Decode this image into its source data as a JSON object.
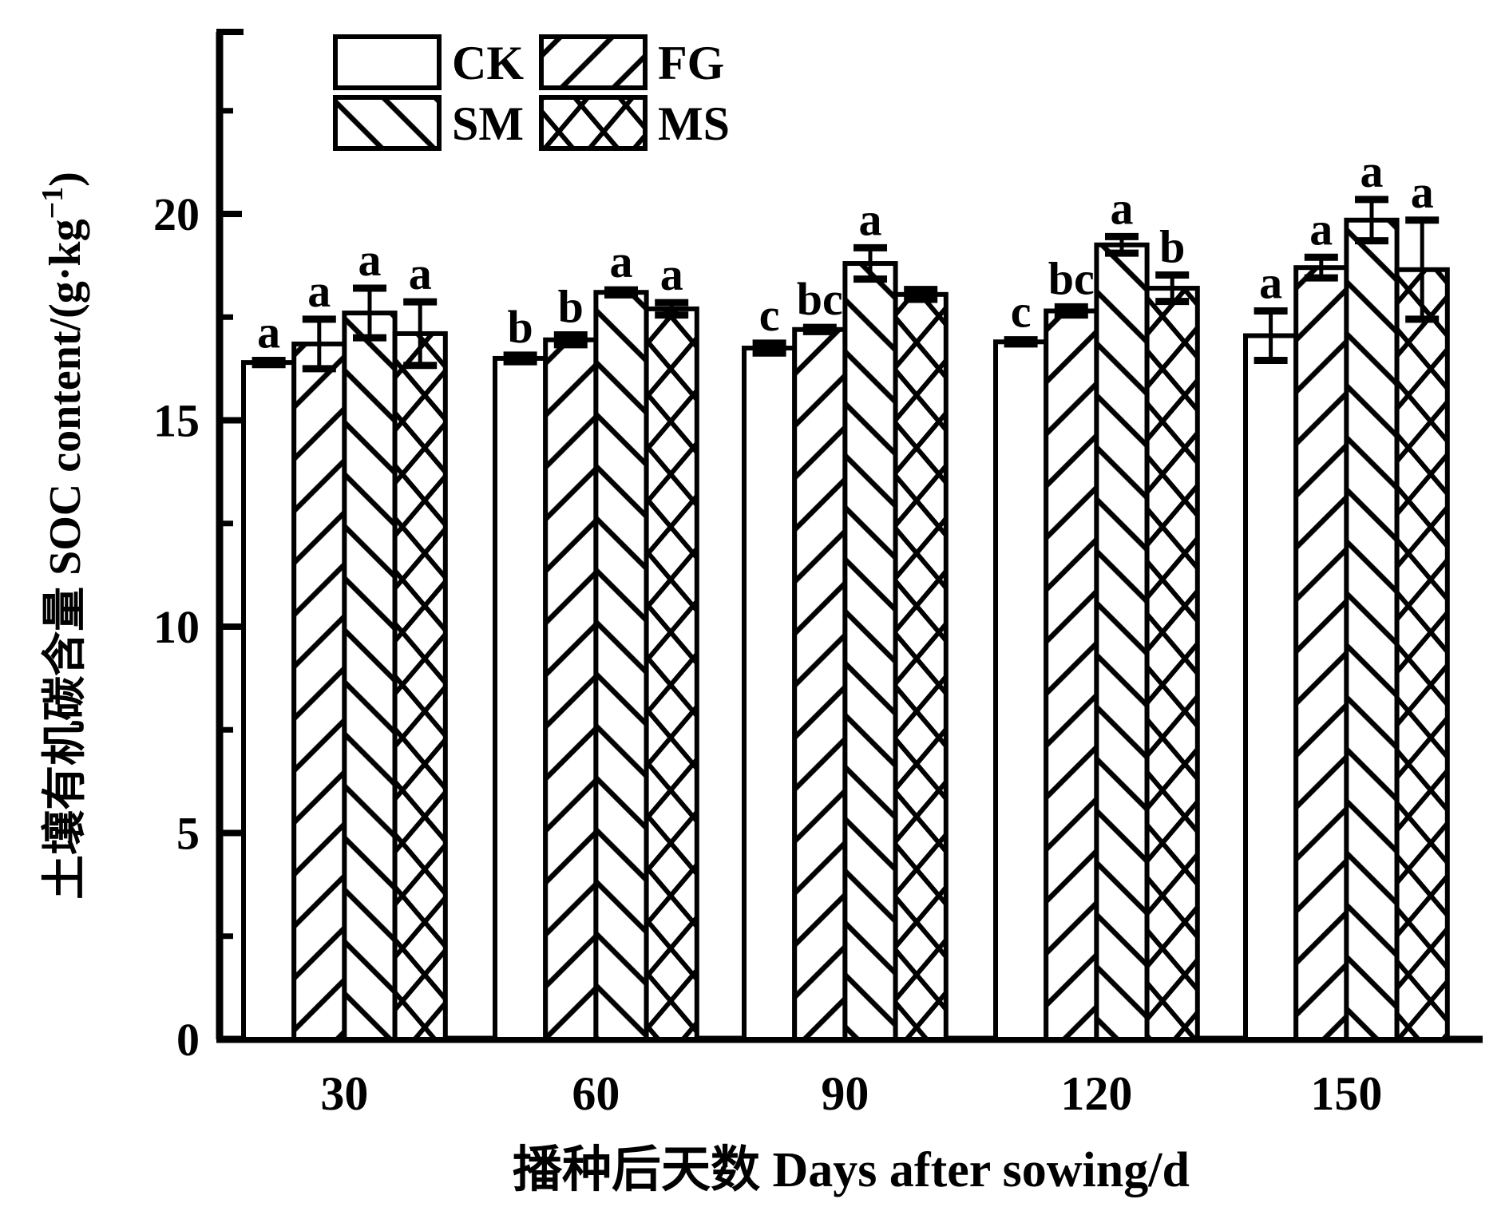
{
  "figure": {
    "background": "#ffffff",
    "ink_color": "#000000"
  },
  "chart_data": {
    "type": "bar",
    "title": "",
    "xlabel": "播种后天数 Days after sowing/d",
    "ylabel_prefix": "土壤有机碳含量 SOC content/(g·kg",
    "ylabel_superscript": "−1",
    "ylabel_suffix": ")",
    "categories": [
      "30",
      "60",
      "90",
      "120",
      "150"
    ],
    "ylim": [
      0,
      24.4
    ],
    "yticks": [
      0,
      5,
      10,
      15,
      20
    ],
    "minor_yticks": [
      2.5,
      7.5,
      12.5,
      17.5,
      22.5
    ],
    "grid": "off",
    "legend_position": "top-left-inside",
    "bar_style": "black-and-white hatched, thick outlines, error bars with caps, significance letters above bars",
    "series": [
      {
        "name": "CK",
        "hatch": "none",
        "values": [
          16.4,
          16.5,
          16.75,
          16.9,
          17.05
        ],
        "errors": [
          0.05,
          0.08,
          0.12,
          0.05,
          0.6
        ],
        "sig_labels": [
          "a",
          "b",
          "c",
          "c",
          "a"
        ]
      },
      {
        "name": "FG",
        "hatch": "forward-diagonal",
        "values": [
          16.85,
          16.95,
          17.2,
          17.65,
          18.7
        ],
        "errors": [
          0.6,
          0.12,
          0.05,
          0.1,
          0.25
        ],
        "sig_labels": [
          "a",
          "b",
          "bc",
          "bc",
          "a"
        ]
      },
      {
        "name": "SM",
        "hatch": "backward-diagonal",
        "values": [
          17.6,
          18.1,
          18.8,
          19.25,
          19.85
        ],
        "errors": [
          0.6,
          0.06,
          0.38,
          0.2,
          0.5
        ],
        "sig_labels": [
          "a",
          "a",
          "a",
          "a",
          "a"
        ]
      },
      {
        "name": "MS",
        "hatch": "cross",
        "values": [
          17.1,
          17.7,
          18.05,
          18.2,
          18.65
        ],
        "errors": [
          0.77,
          0.15,
          0.12,
          0.32,
          1.2
        ],
        "sig_labels": [
          "a",
          "a",
          "",
          "b",
          "a"
        ]
      }
    ]
  }
}
